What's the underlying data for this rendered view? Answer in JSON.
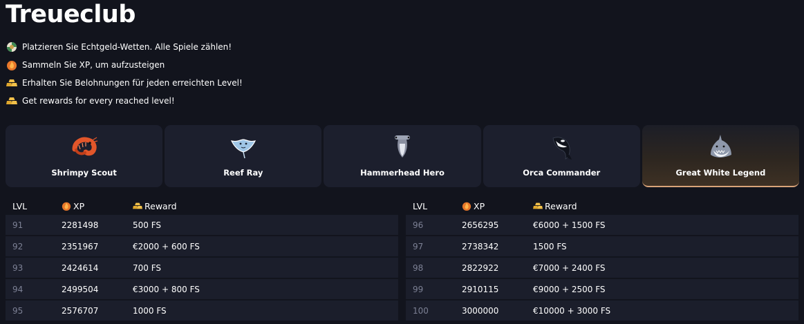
{
  "title": "Treueclub",
  "bullets": [
    {
      "icon": "casino-chip-icon",
      "text": "Platzieren Sie Echtgeld-Wetten. Alle Spiele zählen!"
    },
    {
      "icon": "flame-icon",
      "text": "Sammeln Sie XP, um aufzusteigen"
    },
    {
      "icon": "gold-bars-icon",
      "text": "Erhalten Sie Belohnungen für jeden erreichten Level!"
    },
    {
      "icon": "gold-bars-icon",
      "text": "Get rewards for every reached level!"
    }
  ],
  "tiers": [
    {
      "icon": "shrimp-icon",
      "name": "Shrimpy Scout",
      "active": false
    },
    {
      "icon": "ray-icon",
      "name": "Reef Ray",
      "active": false
    },
    {
      "icon": "hammerhead-icon",
      "name": "Hammerhead Hero",
      "active": false
    },
    {
      "icon": "orca-icon",
      "name": "Orca Commander",
      "active": false
    },
    {
      "icon": "shark-icon",
      "name": "Great White Legend",
      "active": true
    }
  ],
  "table_headers": {
    "lvl": "LVL",
    "xp": "XP",
    "reward": "Reward"
  },
  "left_rows": [
    {
      "lvl": "91",
      "xp": "2281498",
      "reward": "500 FS"
    },
    {
      "lvl": "92",
      "xp": "2351967",
      "reward": "€2000 + 600 FS"
    },
    {
      "lvl": "93",
      "xp": "2424614",
      "reward": "700 FS"
    },
    {
      "lvl": "94",
      "xp": "2499504",
      "reward": "€3000 + 800 FS"
    },
    {
      "lvl": "95",
      "xp": "2576707",
      "reward": "1000 FS"
    }
  ],
  "right_rows": [
    {
      "lvl": "96",
      "xp": "2656295",
      "reward": "€6000 + 1500 FS"
    },
    {
      "lvl": "97",
      "xp": "2738342",
      "reward": "1500 FS"
    },
    {
      "lvl": "98",
      "xp": "2822922",
      "reward": "€7000 + 2400 FS"
    },
    {
      "lvl": "99",
      "xp": "2910115",
      "reward": "€9000 + 2500 FS"
    },
    {
      "lvl": "100",
      "xp": "3000000",
      "reward": "€10000 + 3000 FS"
    }
  ],
  "colors": {
    "background": "#12141d",
    "card": "#1c1f2d",
    "active_border": "#d9a47a",
    "muted_text": "#7c8094"
  }
}
